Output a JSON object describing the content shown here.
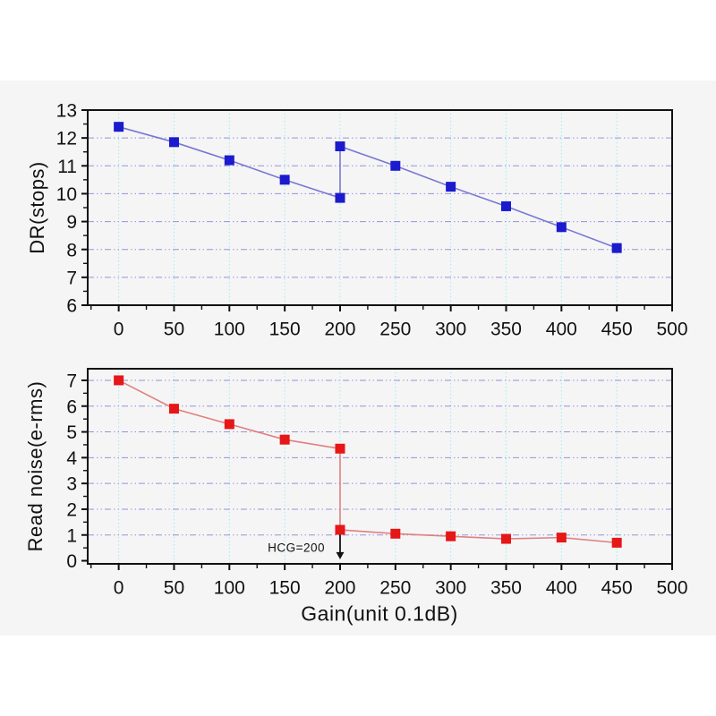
{
  "figure": {
    "page_color": "#ffffff",
    "panel_color": "#f5f5f6",
    "axis_color": "#111111",
    "text_color": "#111111",
    "grid_vertical_color": "#9deeee",
    "grid_horizontal_color": "#9494d8"
  },
  "xaxis": {
    "label": "Gain(unit 0.1dB)"
  },
  "annotation": {
    "text": "HCG=200"
  },
  "chart_data": [
    {
      "type": "line",
      "name": "dr",
      "title": "",
      "ylabel": "DR(stops)",
      "xlabel": "",
      "x": [
        0,
        50,
        100,
        150,
        200,
        200,
        250,
        300,
        350,
        400,
        450
      ],
      "y": [
        12.4,
        11.85,
        11.2,
        10.5,
        9.85,
        11.7,
        11.0,
        10.25,
        9.55,
        8.8,
        8.05
      ],
      "xlim": [
        -28,
        500
      ],
      "ylim": [
        6,
        13
      ],
      "xticks": [
        0,
        50,
        100,
        150,
        200,
        250,
        300,
        350,
        400,
        450,
        500
      ],
      "yticks": [
        6,
        7,
        8,
        9,
        10,
        11,
        12,
        13
      ],
      "x_minor_step": 25,
      "y_minor_step": 0.5,
      "xgrid": [
        0,
        50,
        100,
        150,
        200,
        250,
        300,
        350,
        400,
        450
      ],
      "ygrid": [
        7,
        8,
        9,
        10,
        11,
        12
      ],
      "grid": true,
      "legend": "none",
      "marker": "square",
      "marker_color": "#1b1bcd",
      "line_color": "#7878d2"
    },
    {
      "type": "line",
      "name": "read-noise",
      "title": "",
      "ylabel": "Read noise(e-rms)",
      "xlabel": "Gain(unit 0.1dB)",
      "x": [
        0,
        50,
        100,
        150,
        200,
        200,
        250,
        300,
        350,
        400,
        450
      ],
      "y": [
        7.0,
        5.9,
        5.3,
        4.7,
        4.35,
        1.2,
        1.05,
        0.95,
        0.85,
        0.9,
        0.7
      ],
      "xlim": [
        -28,
        500
      ],
      "ylim": [
        -0.12,
        7.45
      ],
      "xticks": [
        0,
        50,
        100,
        150,
        200,
        250,
        300,
        350,
        400,
        450,
        500
      ],
      "yticks": [
        0,
        1,
        2,
        3,
        4,
        5,
        6,
        7
      ],
      "x_minor_step": 25,
      "y_minor_step": 0.5,
      "xgrid": [
        0,
        50,
        100,
        150,
        200,
        250,
        300,
        350,
        400,
        450
      ],
      "ygrid": [
        1,
        2,
        3,
        4,
        5,
        6,
        7
      ],
      "grid": true,
      "legend": "none",
      "marker": "square",
      "marker_color": "#e61717",
      "line_color": "#e08080",
      "annotation": {
        "text": "HCG=200",
        "x": 200,
        "arrow_from_y": 1.25,
        "arrow_to_y": 0.06
      }
    }
  ]
}
